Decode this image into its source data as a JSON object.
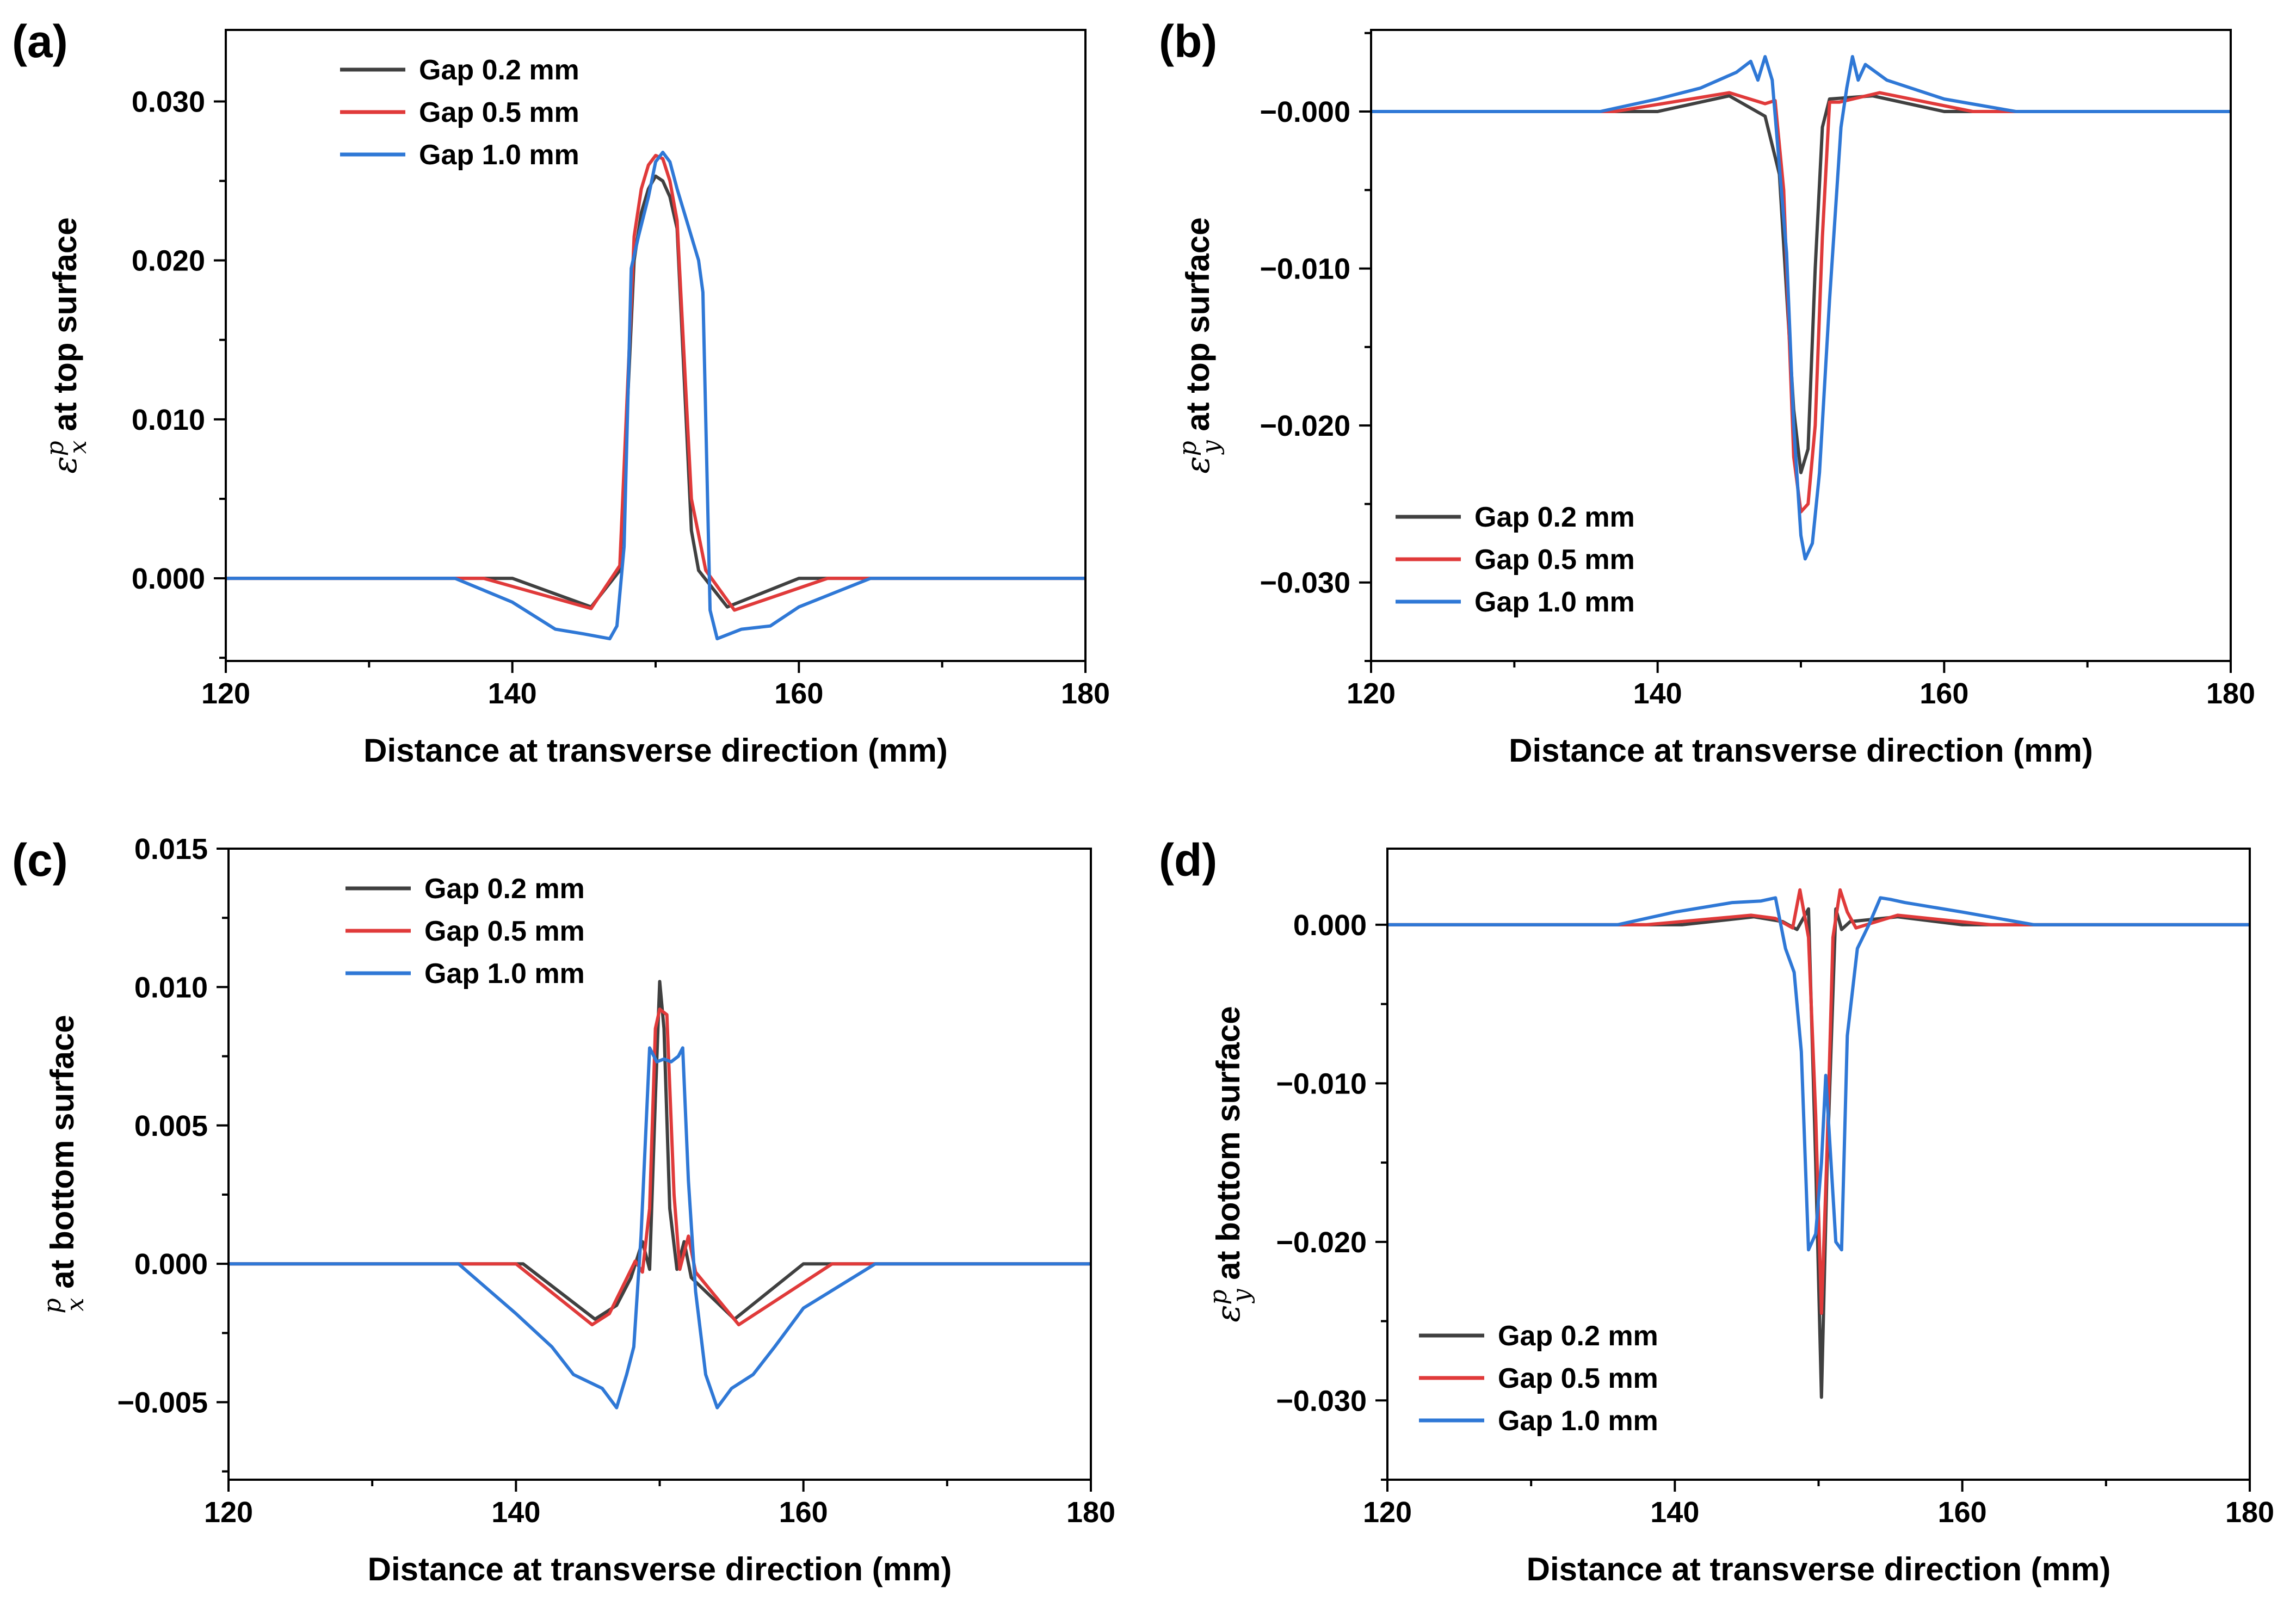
{
  "colors": {
    "gap_0_2": "#404040",
    "gap_0_5": "#e03a3a",
    "gap_1_0": "#2f78d6"
  },
  "chart_data": [
    {
      "panel": "(a)",
      "type": "line",
      "ylabel_symbol": "ε",
      "ylabel_sup": "p",
      "ylabel_sub": "x",
      "ylabel_rest": " at top surface",
      "xlabel": "Distance at transverse direction (mm)",
      "xlim": [
        120,
        180
      ],
      "ylim": [
        -0.0052,
        0.0345
      ],
      "xticks": [
        120,
        140,
        160,
        180
      ],
      "xtick_labels": [
        "120",
        "140",
        "160",
        "180"
      ],
      "yticks": [
        0.0,
        0.01,
        0.02,
        0.03
      ],
      "ytick_labels": [
        "0.000",
        "0.010",
        "0.020",
        "0.030"
      ],
      "legend_position": "top-left",
      "series": [
        {
          "name": "Gap 0.2 mm",
          "color_key": "gap_0_2",
          "x": [
            120,
            140,
            145.5,
            147.5,
            148.5,
            149,
            149.5,
            150,
            150.5,
            151,
            151.5,
            152.5,
            153,
            155,
            160,
            180
          ],
          "y": [
            0,
            0,
            -0.0018,
            0.0005,
            0.02,
            0.023,
            0.0245,
            0.0253,
            0.025,
            0.024,
            0.022,
            0.003,
            0.0005,
            -0.0018,
            0,
            0
          ]
        },
        {
          "name": "Gap 0.5 mm",
          "color_key": "gap_0_5",
          "x": [
            120,
            138,
            145.5,
            147.5,
            148.5,
            149,
            149.5,
            150,
            150.5,
            151,
            151.5,
            152.5,
            153.5,
            155.5,
            162,
            180
          ],
          "y": [
            0,
            0,
            -0.0019,
            0.0008,
            0.0215,
            0.0245,
            0.026,
            0.0266,
            0.0264,
            0.025,
            0.0225,
            0.005,
            0.0005,
            -0.002,
            0,
            0
          ]
        },
        {
          "name": "Gap 1.0 mm",
          "color_key": "gap_1_0",
          "x": [
            120,
            136,
            140,
            143,
            145,
            146.8,
            147.3,
            147.8,
            148.3,
            148.8,
            149.5,
            150,
            150.5,
            151,
            151.5,
            152,
            153,
            153.3,
            153.8,
            154.3,
            156,
            158,
            160,
            165,
            180
          ],
          "y": [
            0,
            0,
            -0.0015,
            -0.0032,
            -0.0035,
            -0.0038,
            -0.003,
            0.002,
            0.0195,
            0.0215,
            0.024,
            0.0262,
            0.0268,
            0.0262,
            0.0245,
            0.023,
            0.02,
            0.018,
            -0.002,
            -0.0038,
            -0.0032,
            -0.003,
            -0.0018,
            0,
            0
          ]
        }
      ]
    },
    {
      "panel": "(b)",
      "type": "line",
      "ylabel_symbol": "ε",
      "ylabel_sup": "p",
      "ylabel_sub": "y",
      "ylabel_rest": " at top surface",
      "xlabel": "Distance at transverse direction (mm)",
      "xlim": [
        120,
        180
      ],
      "ylim": [
        -0.035,
        0.0052
      ],
      "xticks": [
        120,
        140,
        160,
        180
      ],
      "xtick_labels": [
        "120",
        "140",
        "160",
        "180"
      ],
      "yticks": [
        0.0,
        -0.01,
        -0.02,
        -0.03
      ],
      "ytick_labels": [
        "−0.000",
        "−0.010",
        "−0.020",
        "−0.030"
      ],
      "legend_position": "bottom-left",
      "series": [
        {
          "name": "Gap 0.2 mm",
          "color_key": "gap_0_2",
          "x": [
            120,
            140,
            145,
            147.5,
            148.5,
            149.5,
            150,
            150.5,
            151,
            151.5,
            152,
            155,
            160,
            180
          ],
          "y": [
            0,
            0,
            0.001,
            -0.0003,
            -0.004,
            -0.019,
            -0.023,
            -0.0215,
            -0.01,
            -0.001,
            0.0008,
            0.001,
            0,
            0
          ]
        },
        {
          "name": "Gap 0.5 mm",
          "color_key": "gap_0_5",
          "x": [
            120,
            137,
            145,
            147.5,
            148.2,
            148.8,
            149.5,
            150,
            150.5,
            151,
            151.5,
            152,
            152.7,
            155.5,
            162,
            180
          ],
          "y": [
            0,
            0,
            0.0012,
            0.0005,
            0.0007,
            -0.005,
            -0.022,
            -0.0255,
            -0.025,
            -0.02,
            -0.008,
            0.0006,
            0.0006,
            0.0012,
            0,
            0
          ]
        },
        {
          "name": "Gap 1.0 mm",
          "color_key": "gap_1_0",
          "x": [
            120,
            136,
            140,
            143,
            145.5,
            146.5,
            147,
            147.5,
            148,
            149,
            149.5,
            150,
            150.3,
            150.8,
            151.3,
            152,
            152.8,
            153.2,
            153.6,
            154,
            154.5,
            156,
            160,
            165,
            180
          ],
          "y": [
            0,
            0,
            0.0008,
            0.0015,
            0.0025,
            0.0032,
            0.002,
            0.0035,
            0.002,
            -0.009,
            -0.02,
            -0.027,
            -0.0285,
            -0.0275,
            -0.023,
            -0.012,
            -0.001,
            0.0015,
            0.0035,
            0.002,
            0.003,
            0.002,
            0.0008,
            0,
            0
          ]
        }
      ]
    },
    {
      "panel": "(c)",
      "type": "line",
      "ylabel_symbol": "",
      "ylabel_sup": "p",
      "ylabel_sub": "x",
      "ylabel_rest": " at bottom surface",
      "xlabel": "Distance at transverse direction (mm)",
      "xlim": [
        120,
        180
      ],
      "ylim": [
        -0.0078,
        0.015
      ],
      "xticks": [
        120,
        140,
        160,
        180
      ],
      "xtick_labels": [
        "120",
        "140",
        "160",
        "180"
      ],
      "yticks": [
        -0.005,
        0.0,
        0.005,
        0.01,
        0.015
      ],
      "ytick_labels": [
        "−0.005",
        "0.000",
        "0.005",
        "0.010",
        "0.015"
      ],
      "legend_position": "top-left",
      "series": [
        {
          "name": "Gap 0.2 mm",
          "color_key": "gap_0_2",
          "x": [
            120,
            140.5,
            145.5,
            147,
            148,
            148.8,
            149.3,
            149.7,
            150,
            150.3,
            150.7,
            151.2,
            151.7,
            152.2,
            155.2,
            160,
            180
          ],
          "y": [
            0,
            0,
            -0.002,
            -0.0015,
            -0.0005,
            0.0008,
            -0.0002,
            0.006,
            0.0102,
            0.0085,
            0.002,
            -0.0002,
            0.0008,
            -0.0005,
            -0.002,
            0,
            0
          ]
        },
        {
          "name": "Gap 0.5 mm",
          "color_key": "gap_0_5",
          "x": [
            120,
            140,
            145.3,
            146.5,
            148.3,
            148.8,
            149.3,
            149.7,
            150,
            150.5,
            151,
            151.4,
            152,
            152.5,
            155.5,
            162,
            180
          ],
          "y": [
            0,
            0,
            -0.0022,
            -0.0018,
            0.0001,
            -0.0003,
            0.002,
            0.0085,
            0.0092,
            0.009,
            0.0025,
            -0.0002,
            0.001,
            -0.0003,
            -0.0022,
            0,
            0
          ]
        },
        {
          "name": "Gap 1.0 mm",
          "color_key": "gap_1_0",
          "x": [
            120,
            136,
            140,
            142.5,
            144,
            146,
            147,
            147.7,
            148.2,
            148.7,
            149.3,
            149.8,
            150.3,
            150.8,
            151.3,
            151.6,
            152,
            152.5,
            153.2,
            154,
            155,
            156.5,
            158,
            160,
            165,
            180
          ],
          "y": [
            0,
            0,
            -0.0018,
            -0.003,
            -0.004,
            -0.0045,
            -0.0052,
            -0.004,
            -0.003,
            0.001,
            0.0078,
            0.0073,
            0.0074,
            0.0073,
            0.0075,
            0.0078,
            0.003,
            -0.001,
            -0.004,
            -0.0052,
            -0.0045,
            -0.004,
            -0.003,
            -0.0016,
            0,
            0
          ]
        }
      ]
    },
    {
      "panel": "(d)",
      "type": "line",
      "ylabel_symbol": "ε",
      "ylabel_sup": "p",
      "ylabel_sub": "y",
      "ylabel_rest": " at bottom surface",
      "xlabel": "Distance at transverse direction (mm)",
      "xlim": [
        120,
        180
      ],
      "ylim": [
        -0.035,
        0.0048
      ],
      "xticks": [
        120,
        140,
        160,
        180
      ],
      "xtick_labels": [
        "120",
        "140",
        "160",
        "180"
      ],
      "yticks": [
        0.0,
        -0.01,
        -0.02,
        -0.03
      ],
      "ytick_labels": [
        "0.000",
        "−0.010",
        "−0.020",
        "−0.030"
      ],
      "legend_position": "bottom-left",
      "series": [
        {
          "name": "Gap 0.2 mm",
          "color_key": "gap_0_2",
          "x": [
            120,
            140.5,
            145.5,
            147.5,
            148.5,
            149.3,
            149.8,
            150.2,
            150.6,
            151.2,
            151.6,
            152.2,
            155.5,
            160,
            180
          ],
          "y": [
            0,
            0,
            0.0005,
            0.0002,
            -0.0003,
            0.001,
            -0.015,
            -0.0298,
            -0.015,
            0.001,
            -0.0003,
            0.0002,
            0.0005,
            0,
            0
          ]
        },
        {
          "name": "Gap 0.5 mm",
          "color_key": "gap_0_5",
          "x": [
            120,
            138,
            145.3,
            147,
            148.2,
            148.7,
            149.3,
            149.8,
            150.2,
            150.6,
            151,
            151.5,
            152,
            152.6,
            155.5,
            162,
            180
          ],
          "y": [
            0,
            0,
            0.0006,
            0.0004,
            -0.0002,
            0.0022,
            -0.0008,
            -0.012,
            -0.0245,
            -0.014,
            -0.0008,
            0.0022,
            0.0008,
            -0.0002,
            0.0006,
            0,
            0
          ]
        },
        {
          "name": "Gap 1.0 mm",
          "color_key": "gap_1_0",
          "x": [
            120,
            136,
            140,
            144,
            146,
            147,
            147.7,
            148.3,
            148.8,
            149.3,
            149.8,
            150.2,
            150.5,
            150.8,
            151.2,
            151.6,
            152,
            152.7,
            153.5,
            154.3,
            155,
            156,
            160,
            165,
            180
          ],
          "y": [
            0,
            0,
            0.0008,
            0.0014,
            0.0015,
            0.0017,
            -0.0015,
            -0.003,
            -0.008,
            -0.0205,
            -0.0195,
            -0.015,
            -0.0095,
            -0.014,
            -0.02,
            -0.0205,
            -0.007,
            -0.0015,
            0.0,
            0.0017,
            0.0016,
            0.0014,
            0.0008,
            0,
            0
          ]
        }
      ]
    }
  ]
}
